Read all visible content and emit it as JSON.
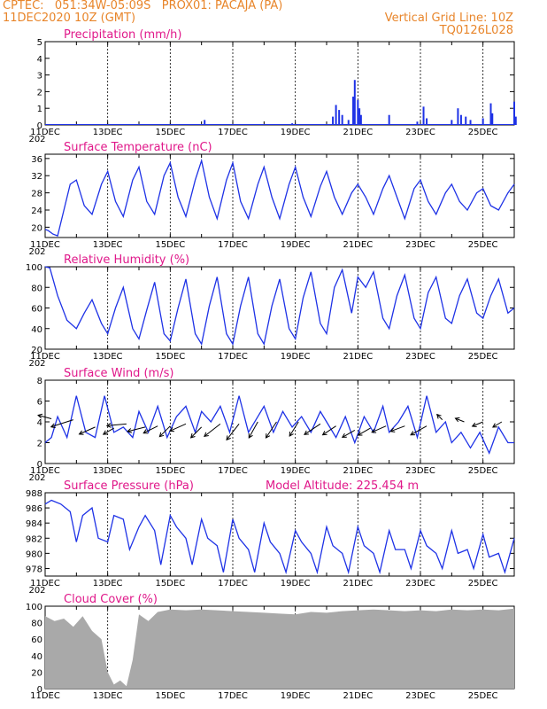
{
  "header": {
    "line1": "CPTEC:   051:34W-05:09S   PROX01: PACAJA (PA)",
    "line2": "11DEC2020 10Z (GMT)",
    "vgrid": "Vertical Grid Line: 10Z",
    "code": "TQ0126L028"
  },
  "x_ticks": [
    "11DEC",
    "13DEC",
    "15DEC",
    "17DEC",
    "19DEC",
    "21DEC",
    "23DEC",
    "25DEC"
  ],
  "year_fragment": "202",
  "colors": {
    "header": "#e8852a",
    "title": "#e0188a",
    "line": "#1e32e6",
    "cloud": "#a9a9a9",
    "grid": "#000000"
  },
  "chart_data": [
    {
      "type": "bar",
      "title": "Precipitation (mm/h)",
      "ylim": [
        0,
        5
      ],
      "yticks": [
        "0",
        "1",
        "2",
        "3",
        "4",
        "5"
      ],
      "x_day_range": [
        11,
        26
      ],
      "bars": [
        {
          "day": 16.1,
          "value": 0.3
        },
        {
          "day": 18.9,
          "value": 0.1
        },
        {
          "day": 20.2,
          "value": 0.5
        },
        {
          "day": 20.3,
          "value": 1.2
        },
        {
          "day": 20.4,
          "value": 0.9
        },
        {
          "day": 20.5,
          "value": 0.6
        },
        {
          "day": 20.7,
          "value": 0.3
        },
        {
          "day": 20.85,
          "value": 1.7
        },
        {
          "day": 20.9,
          "value": 2.7
        },
        {
          "day": 21.0,
          "value": 1.5
        },
        {
          "day": 21.05,
          "value": 1.0
        },
        {
          "day": 21.1,
          "value": 0.6
        },
        {
          "day": 22.0,
          "value": 0.6
        },
        {
          "day": 22.9,
          "value": 0.2
        },
        {
          "day": 23.1,
          "value": 1.1
        },
        {
          "day": 23.2,
          "value": 0.4
        },
        {
          "day": 24.0,
          "value": 0.3
        },
        {
          "day": 24.2,
          "value": 1.0
        },
        {
          "day": 24.3,
          "value": 0.6
        },
        {
          "day": 24.45,
          "value": 0.5
        },
        {
          "day": 24.6,
          "value": 0.3
        },
        {
          "day": 25.0,
          "value": 0.4
        },
        {
          "day": 25.25,
          "value": 1.3
        },
        {
          "day": 25.3,
          "value": 0.7
        },
        {
          "day": 26.0,
          "value": 1.4
        },
        {
          "day": 26.05,
          "value": 0.5
        }
      ]
    },
    {
      "type": "line",
      "title": "Surface Temperature (nC)",
      "ylim": [
        17.6,
        37
      ],
      "yticks": [
        "20",
        "24",
        "28",
        "32",
        "36"
      ],
      "ytick_values": [
        20,
        24,
        28,
        32,
        36
      ],
      "x": [
        11,
        11.1,
        11.25,
        11.4,
        11.6,
        11.8,
        12.0,
        12.25,
        12.5,
        12.8,
        13.0,
        13.25,
        13.5,
        13.8,
        14.0,
        14.25,
        14.5,
        14.8,
        15.0,
        15.25,
        15.5,
        15.8,
        16.0,
        16.25,
        16.5,
        16.8,
        17.0,
        17.25,
        17.5,
        17.8,
        18.0,
        18.25,
        18.5,
        18.8,
        19.0,
        19.25,
        19.5,
        19.8,
        20.0,
        20.25,
        20.5,
        20.8,
        21.0,
        21.25,
        21.5,
        21.8,
        22.0,
        22.25,
        22.5,
        22.8,
        23.0,
        23.25,
        23.5,
        23.8,
        24.0,
        24.25,
        24.5,
        24.8,
        25.0,
        25.25,
        25.5,
        25.8,
        26.0
      ],
      "values": [
        19.5,
        19.2,
        18.4,
        18.0,
        24.0,
        30.0,
        31.0,
        25.0,
        23.0,
        30.0,
        33.0,
        26.0,
        22.5,
        31.0,
        34.0,
        26.0,
        23.0,
        32.0,
        35.0,
        27.0,
        22.5,
        31.0,
        35.5,
        27.0,
        22.0,
        31.0,
        35.0,
        26.0,
        22.0,
        30.0,
        34.0,
        27.0,
        22.0,
        30.0,
        34.0,
        27.0,
        22.5,
        29.5,
        33.0,
        27.0,
        23.0,
        28.0,
        30.0,
        27.0,
        23.0,
        29.0,
        32.0,
        27.0,
        22.0,
        29.0,
        31.0,
        26.0,
        23.0,
        28.0,
        30.0,
        26.0,
        24.0,
        28.0,
        29.0,
        25.0,
        24.0,
        28.0,
        30.0
      ]
    },
    {
      "type": "line",
      "title": "Relative Humidity (%)",
      "ylim": [
        20,
        100
      ],
      "yticks": [
        "20",
        "40",
        "60",
        "80",
        "100"
      ],
      "ytick_values": [
        20,
        40,
        60,
        80,
        100
      ],
      "x": [
        11,
        11.15,
        11.4,
        11.7,
        12.0,
        12.25,
        12.5,
        12.8,
        13.0,
        13.25,
        13.5,
        13.8,
        14.0,
        14.25,
        14.5,
        14.8,
        15.0,
        15.25,
        15.5,
        15.8,
        16.0,
        16.25,
        16.5,
        16.8,
        17.0,
        17.25,
        17.5,
        17.8,
        18.0,
        18.25,
        18.5,
        18.8,
        19.0,
        19.25,
        19.5,
        19.8,
        20.0,
        20.25,
        20.5,
        20.8,
        21.0,
        21.25,
        21.5,
        21.8,
        22.0,
        22.25,
        22.5,
        22.8,
        23.0,
        23.25,
        23.5,
        23.8,
        24.0,
        24.25,
        24.5,
        24.8,
        25.0,
        25.25,
        25.5,
        25.8,
        26.0
      ],
      "values": [
        100,
        99,
        72,
        48,
        40,
        55,
        68,
        45,
        35,
        60,
        80,
        40,
        30,
        58,
        85,
        35,
        28,
        60,
        88,
        35,
        25,
        62,
        90,
        35,
        25,
        62,
        90,
        35,
        25,
        62,
        88,
        40,
        30,
        70,
        95,
        45,
        35,
        80,
        97,
        55,
        90,
        80,
        95,
        50,
        40,
        72,
        92,
        50,
        40,
        75,
        90,
        50,
        45,
        72,
        88,
        55,
        50,
        72,
        88,
        55,
        60
      ]
    },
    {
      "type": "line",
      "title": "Surface Wind (m/s)",
      "ylim": [
        0,
        8
      ],
      "yticks": [
        "0",
        "2",
        "4",
        "6",
        "8"
      ],
      "ytick_values": [
        0,
        2,
        4,
        6,
        8
      ],
      "x": [
        11,
        11.2,
        11.4,
        11.7,
        12.0,
        12.3,
        12.6,
        12.9,
        13.2,
        13.5,
        13.8,
        14.0,
        14.3,
        14.6,
        14.9,
        15.2,
        15.5,
        15.8,
        16.0,
        16.3,
        16.6,
        16.9,
        17.2,
        17.5,
        17.8,
        18.0,
        18.3,
        18.6,
        18.9,
        19.2,
        19.5,
        19.8,
        20.0,
        20.3,
        20.6,
        20.9,
        21.2,
        21.5,
        21.8,
        22.0,
        22.3,
        22.6,
        22.9,
        23.2,
        23.5,
        23.8,
        24.0,
        24.3,
        24.6,
        24.9,
        25.2,
        25.5,
        25.8,
        26.0
      ],
      "values": [
        2.0,
        2.5,
        4.5,
        2.5,
        6.5,
        3.0,
        2.5,
        6.5,
        3.0,
        3.5,
        2.5,
        5.0,
        3.0,
        5.5,
        2.5,
        4.5,
        5.5,
        3.0,
        5.0,
        4.0,
        5.5,
        3.0,
        6.5,
        3.0,
        4.5,
        5.5,
        3.0,
        5.0,
        3.5,
        4.5,
        3.0,
        5.0,
        4.0,
        2.5,
        4.5,
        2.0,
        4.5,
        3.0,
        5.5,
        3.0,
        4.0,
        5.5,
        2.5,
        6.5,
        3.0,
        4.0,
        2.0,
        3.0,
        1.5,
        3.0,
        1.0,
        3.5,
        2.0,
        2.0
      ],
      "arrows": [
        {
          "day": 11.2,
          "value": 4.3,
          "dx": -15,
          "dy": -4
        },
        {
          "day": 11.9,
          "value": 4.2,
          "dx": -25,
          "dy": 8
        },
        {
          "day": 12.6,
          "value": 3.5,
          "dx": -18,
          "dy": 8
        },
        {
          "day": 13.2,
          "value": 3.4,
          "dx": -12,
          "dy": 7
        },
        {
          "day": 13.6,
          "value": 3.8,
          "dx": -22,
          "dy": 2
        },
        {
          "day": 14.2,
          "value": 3.5,
          "dx": -20,
          "dy": 5
        },
        {
          "day": 14.6,
          "value": 3.6,
          "dx": -16,
          "dy": 8
        },
        {
          "day": 15.0,
          "value": 3.6,
          "dx": -12,
          "dy": 12
        },
        {
          "day": 15.5,
          "value": 3.8,
          "dx": -18,
          "dy": 8
        },
        {
          "day": 16.0,
          "value": 3.5,
          "dx": -12,
          "dy": 12
        },
        {
          "day": 16.6,
          "value": 3.8,
          "dx": -18,
          "dy": 14
        },
        {
          "day": 17.2,
          "value": 3.8,
          "dx": -14,
          "dy": 18
        },
        {
          "day": 17.8,
          "value": 4.0,
          "dx": -10,
          "dy": 18
        },
        {
          "day": 18.4,
          "value": 4.0,
          "dx": -12,
          "dy": 18
        },
        {
          "day": 19.1,
          "value": 4.0,
          "dx": -10,
          "dy": 16
        },
        {
          "day": 19.8,
          "value": 3.8,
          "dx": -18,
          "dy": 12
        },
        {
          "day": 20.3,
          "value": 3.6,
          "dx": -15,
          "dy": 10
        },
        {
          "day": 20.9,
          "value": 3.2,
          "dx": -14,
          "dy": 8
        },
        {
          "day": 21.4,
          "value": 3.4,
          "dx": -14,
          "dy": 8
        },
        {
          "day": 21.9,
          "value": 3.6,
          "dx": -16,
          "dy": 7
        },
        {
          "day": 22.5,
          "value": 3.6,
          "dx": -16,
          "dy": 6
        },
        {
          "day": 23.2,
          "value": 3.6,
          "dx": -18,
          "dy": 10
        },
        {
          "day": 23.7,
          "value": 4.2,
          "dx": -6,
          "dy": -6
        },
        {
          "day": 24.4,
          "value": 4.0,
          "dx": -10,
          "dy": -4
        },
        {
          "day": 25.0,
          "value": 4.0,
          "dx": -12,
          "dy": 5
        },
        {
          "day": 25.6,
          "value": 4.0,
          "dx": -10,
          "dy": 6
        }
      ]
    },
    {
      "type": "line",
      "title": "Surface Pressure (hPa)",
      "annotation": "Model Altitude: 225.454  m",
      "ylim": [
        977,
        988
      ],
      "yticks": [
        "978",
        "980",
        "982",
        "984",
        "986",
        "988"
      ],
      "ytick_values": [
        978,
        980,
        982,
        984,
        986,
        988
      ],
      "x": [
        11,
        11.2,
        11.5,
        11.8,
        12.0,
        12.2,
        12.5,
        12.7,
        13.0,
        13.2,
        13.5,
        13.7,
        14.0,
        14.2,
        14.5,
        14.7,
        15.0,
        15.2,
        15.5,
        15.7,
        16.0,
        16.2,
        16.5,
        16.7,
        17.0,
        17.2,
        17.5,
        17.7,
        18.0,
        18.2,
        18.5,
        18.7,
        19.0,
        19.2,
        19.5,
        19.7,
        20.0,
        20.2,
        20.5,
        20.7,
        21.0,
        21.2,
        21.5,
        21.7,
        22.0,
        22.2,
        22.5,
        22.7,
        23.0,
        23.2,
        23.5,
        23.7,
        24.0,
        24.2,
        24.5,
        24.7,
        25.0,
        25.2,
        25.5,
        25.7,
        26.0
      ],
      "values": [
        986.5,
        987,
        986.5,
        985.5,
        981.5,
        985,
        986,
        982,
        981.5,
        985,
        984.5,
        980.5,
        983.5,
        985,
        983,
        978.5,
        985,
        983.5,
        982,
        978.5,
        984.5,
        982,
        981,
        977.5,
        984.5,
        982,
        980.5,
        977.5,
        984,
        981.5,
        980,
        977.5,
        983,
        981.5,
        980,
        977.5,
        983.5,
        981,
        980,
        977.5,
        983.5,
        981,
        980,
        977.5,
        983,
        980.5,
        980.5,
        978,
        983,
        981,
        980,
        978,
        983,
        980,
        980.5,
        978,
        982.5,
        979.5,
        980,
        977.5,
        982
      ]
    },
    {
      "type": "area",
      "title": "Cloud Cover (%)",
      "ylim": [
        0,
        100
      ],
      "yticks": [
        "0",
        "20",
        "40",
        "60",
        "80",
        "100"
      ],
      "ytick_values": [
        0,
        20,
        40,
        60,
        80,
        100
      ],
      "x": [
        11,
        11.3,
        11.6,
        11.9,
        12.2,
        12.5,
        12.8,
        13.0,
        13.2,
        13.4,
        13.6,
        13.8,
        14.0,
        14.3,
        14.6,
        15.0,
        15.5,
        16.0,
        16.5,
        17.0,
        17.5,
        18.0,
        18.5,
        19.0,
        19.5,
        20.0,
        20.5,
        21.0,
        21.5,
        22.0,
        22.5,
        23.0,
        23.5,
        24.0,
        24.5,
        25.0,
        25.5,
        26.0
      ],
      "values": [
        88,
        82,
        85,
        75,
        88,
        70,
        60,
        20,
        5,
        10,
        3,
        35,
        90,
        82,
        93,
        96,
        95,
        96,
        95,
        94,
        93,
        92,
        91,
        90,
        93,
        92,
        94,
        95,
        96,
        95,
        94,
        95,
        94,
        96,
        95,
        96,
        95,
        97
      ]
    }
  ]
}
